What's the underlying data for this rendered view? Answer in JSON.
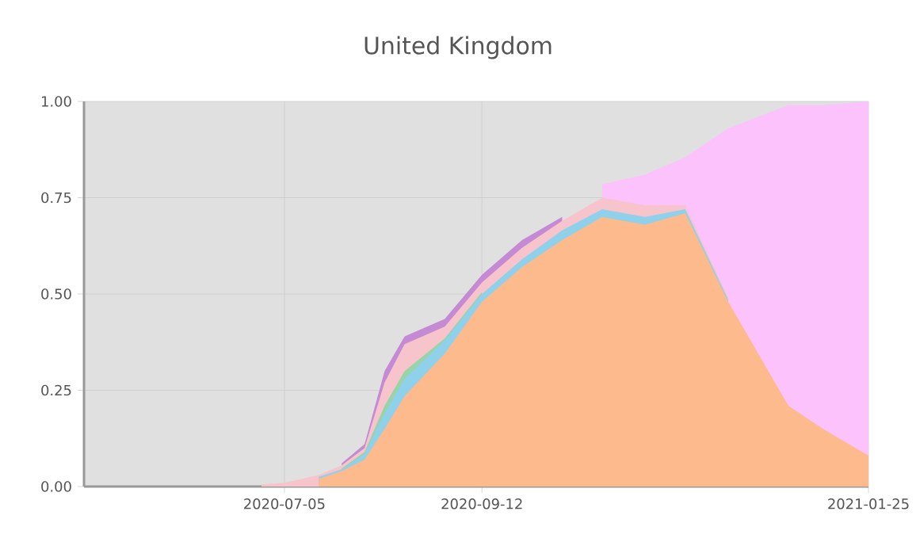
{
  "chart_data": {
    "type": "area",
    "stacked": true,
    "title": "United Kingdom",
    "x": [
      "2020-06-27",
      "2020-07-05",
      "2020-07-17",
      "2020-07-25",
      "2020-08-02",
      "2020-08-09",
      "2020-08-16",
      "2020-08-30",
      "2020-09-12",
      "2020-09-26",
      "2020-10-10",
      "2020-10-24",
      "2020-11-08",
      "2020-11-22",
      "2020-12-07",
      "2020-12-28",
      "2021-01-09",
      "2021-01-25"
    ],
    "series": [
      {
        "color": "#fdba8c",
        "values": [
          null,
          null,
          0.02,
          0.04,
          0.07,
          0.15,
          0.235,
          0.345,
          0.48,
          0.57,
          0.64,
          0.7,
          0.68,
          0.71,
          0.48,
          0.21,
          0.15,
          0.08
        ]
      },
      {
        "color": "#8fd0ea",
        "values": [
          null,
          null,
          0.005,
          0.005,
          0.015,
          0.04,
          0.045,
          0.035,
          0.02,
          0.02,
          0.025,
          0.02,
          0.02,
          0.01,
          0.005,
          null,
          null,
          null
        ]
      },
      {
        "color": "#98d4a8",
        "values": [
          null,
          null,
          null,
          0.002,
          0.005,
          0.02,
          0.02,
          0.005,
          0.005,
          null,
          null,
          null,
          null,
          null,
          null,
          null,
          null,
          null
        ]
      },
      {
        "color": "#f8c4cc",
        "values": [
          0.005,
          0.01,
          0.005,
          0.008,
          0.01,
          0.06,
          0.07,
          0.03,
          0.025,
          0.03,
          0.025,
          0.03,
          0.03,
          0.01,
          0.005,
          null,
          null,
          null
        ]
      },
      {
        "color": "#c48ad4",
        "values": [
          null,
          null,
          null,
          0.005,
          0.01,
          0.03,
          0.02,
          0.02,
          0.02,
          0.02,
          0.01,
          null,
          null,
          null,
          null,
          null,
          null,
          null
        ]
      },
      {
        "color": "#fbc2fb",
        "values": [
          null,
          null,
          null,
          null,
          null,
          null,
          null,
          null,
          null,
          null,
          null,
          0.035,
          0.08,
          0.125,
          0.44,
          0.78,
          0.84,
          0.92
        ]
      }
    ],
    "xlim": [
      "2020-04-26",
      "2021-01-25"
    ],
    "xticks": [
      "2020-07-05",
      "2020-09-12",
      "2021-01-25"
    ],
    "ylim": [
      0,
      1
    ],
    "yticks": [
      {
        "value": 0,
        "label": "0.00"
      },
      {
        "value": 0.25,
        "label": "0.25"
      },
      {
        "value": 0.5,
        "label": "0.50"
      },
      {
        "value": 0.75,
        "label": "0.75"
      },
      {
        "value": 1,
        "label": "1.00"
      }
    ],
    "grid": true
  }
}
